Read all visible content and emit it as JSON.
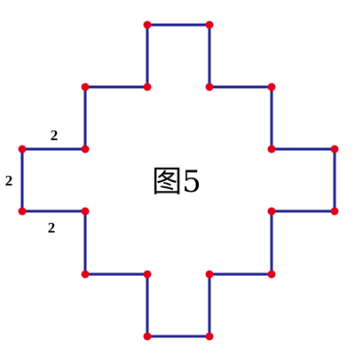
{
  "figure": {
    "caption": "图5",
    "edge_labels": {
      "top_left": "2",
      "left": "2",
      "bottom_left": "2"
    },
    "colors": {
      "outline": "#1c1f8c",
      "vertex": "#e0001a"
    }
  }
}
